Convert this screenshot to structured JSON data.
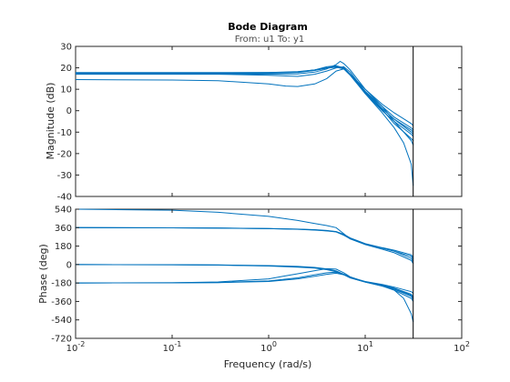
{
  "chart_data": {
    "type": "line",
    "title": "Bode Diagram",
    "subtitle": "From: u1  To: y1",
    "xlabel": "Frequency  (rad/s)",
    "x_scale": "log",
    "xlim": [
      0.01,
      100
    ],
    "x_ticks": [
      {
        "value": 0.01,
        "base": "10",
        "exp": "-2"
      },
      {
        "value": 0.1,
        "base": "10",
        "exp": "-1"
      },
      {
        "value": 1,
        "base": "10",
        "exp": "0"
      },
      {
        "value": 10,
        "base": "10",
        "exp": "1"
      },
      {
        "value": 100,
        "base": "10",
        "exp": "2"
      }
    ],
    "marker_frequency": 31.4,
    "line_color": "#0072bd",
    "panels": [
      {
        "name": "magnitude",
        "ylabel": "Magnitude (dB)",
        "ylim": [
          -40,
          30
        ],
        "y_ticks": [
          {
            "value": 30,
            "label": "30"
          },
          {
            "value": 20,
            "label": "20"
          },
          {
            "value": 10,
            "label": "10"
          },
          {
            "value": 0,
            "label": "0"
          },
          {
            "value": -10,
            "label": "-10"
          },
          {
            "value": -20,
            "label": "-20"
          },
          {
            "value": -30,
            "label": "-30"
          },
          {
            "value": -40,
            "label": "-40"
          }
        ],
        "series": [
          {
            "x": [
              0.01,
              0.1,
              0.3,
              1,
              2,
              3,
              4,
              5,
              6,
              7,
              10,
              15,
              20,
              30,
              31.4
            ],
            "y": [
              17.8,
              17.8,
              17.8,
              17.8,
              18.2,
              19,
              20,
              20.7,
              20,
              17,
              9,
              1,
              -4,
              -9,
              -10
            ]
          },
          {
            "x": [
              0.01,
              0.1,
              0.3,
              1,
              2,
              3,
              4,
              5,
              6,
              7,
              10,
              15,
              20,
              30,
              31.4
            ],
            "y": [
              17.5,
              17.5,
              17.5,
              17.6,
              18,
              19,
              20.5,
              21,
              20,
              17,
              8,
              0,
              -5,
              -11,
              -12
            ]
          },
          {
            "x": [
              0.01,
              0.1,
              0.3,
              1,
              2,
              3,
              4,
              5,
              6,
              7,
              10,
              15,
              20,
              30,
              31.4
            ],
            "y": [
              17,
              17,
              17,
              16.5,
              16,
              17,
              18.5,
              20,
              20.5,
              18,
              9,
              2,
              -3,
              -8,
              -9
            ]
          },
          {
            "x": [
              0.01,
              0.1,
              0.3,
              1,
              2,
              3,
              4,
              5,
              5.5,
              6,
              7,
              10,
              15,
              20,
              30,
              31.4
            ],
            "y": [
              17.3,
              17.3,
              17.2,
              17,
              17.2,
              18,
              19.5,
              21.5,
              23,
              22,
              19,
              10,
              2,
              -5,
              -14,
              -16
            ]
          },
          {
            "x": [
              0.01,
              0.1,
              0.3,
              1,
              1.5,
              2,
              3,
              4,
              5,
              6,
              7,
              10,
              15,
              20,
              30,
              31.4
            ],
            "y": [
              14.5,
              14.3,
              14,
              12.5,
              11.5,
              11.3,
              12.5,
              15,
              18.5,
              19.5,
              17,
              9,
              1,
              -4,
              -10,
              -11
            ]
          },
          {
            "x": [
              0.01,
              0.1,
              0.3,
              1,
              2,
              3,
              4,
              5,
              6,
              7,
              10,
              15,
              20,
              25,
              30,
              31.4
            ],
            "y": [
              17.6,
              17.6,
              17.6,
              17.7,
              18,
              19,
              20,
              20.5,
              19.5,
              16.5,
              8,
              -1,
              -8,
              -15,
              -25,
              -35
            ]
          },
          {
            "x": [
              0.01,
              0.1,
              0.3,
              1,
              2,
              3,
              4,
              5,
              6,
              7,
              10,
              15,
              20,
              30,
              31.4
            ],
            "y": [
              17.7,
              17.7,
              17.7,
              17.8,
              18,
              18.8,
              19.8,
              20.3,
              19.5,
              17,
              10,
              3,
              -1,
              -6,
              -7
            ]
          },
          {
            "x": [
              0.01,
              0.1,
              0.3,
              1,
              2,
              3,
              4,
              5,
              6,
              7,
              10,
              15,
              20,
              30,
              31.4
            ],
            "y": [
              17.4,
              17.4,
              17.4,
              17.5,
              17.8,
              18.8,
              20,
              20.8,
              19.8,
              16.8,
              8.5,
              0.5,
              -6,
              -13,
              -14
            ]
          }
        ]
      },
      {
        "name": "phase",
        "ylabel": "Phase (deg)",
        "ylim": [
          -720,
          540
        ],
        "y_ticks": [
          {
            "value": 540,
            "label": "540"
          },
          {
            "value": 360,
            "label": "360"
          },
          {
            "value": 180,
            "label": "180"
          },
          {
            "value": 0,
            "label": "0"
          },
          {
            "value": -180,
            "label": "-180"
          },
          {
            "value": -360,
            "label": "-360"
          },
          {
            "value": -540,
            "label": "-540"
          },
          {
            "value": -720,
            "label": "-720"
          }
        ],
        "series": [
          {
            "x": [
              0.01,
              0.1,
              0.3,
              1,
              2,
              3,
              4,
              5,
              6,
              7,
              10,
              15,
              20,
              30,
              31.4
            ],
            "y": [
              540,
              530,
              510,
              470,
              430,
              400,
              380,
              360,
              300,
              250,
              200,
              160,
              130,
              60,
              30
            ]
          },
          {
            "x": [
              0.01,
              0.1,
              0.3,
              1,
              2,
              3,
              4,
              5,
              6,
              7,
              10,
              15,
              20,
              30,
              31.4
            ],
            "y": [
              360,
              358,
              355,
              350,
              345,
              338,
              330,
              320,
              290,
              255,
              200,
              160,
              130,
              80,
              50
            ]
          },
          {
            "x": [
              0.01,
              0.1,
              0.3,
              1,
              2,
              3,
              4,
              5,
              6,
              7,
              10,
              15,
              20,
              30,
              31.4
            ],
            "y": [
              360,
              358,
              356,
              352,
              346,
              340,
              332,
              322,
              295,
              260,
              205,
              165,
              140,
              95,
              70
            ]
          },
          {
            "x": [
              0.01,
              0.1,
              0.3,
              1,
              2,
              3,
              4,
              5,
              6,
              7,
              10,
              15,
              20,
              30,
              31.4
            ],
            "y": [
              360,
              358,
              356,
              350,
              344,
              336,
              328,
              318,
              285,
              250,
              195,
              150,
              115,
              40,
              10
            ]
          },
          {
            "x": [
              0.01,
              0.1,
              0.3,
              1,
              2,
              3,
              4,
              5,
              6,
              7,
              10,
              15,
              20,
              30,
              31.4
            ],
            "y": [
              0,
              -2,
              -6,
              -15,
              -25,
              -35,
              -50,
              -70,
              -100,
              -130,
              -170,
              -200,
              -230,
              -290,
              -320
            ]
          },
          {
            "x": [
              0.01,
              0.1,
              0.3,
              1,
              2,
              3,
              4,
              5,
              6,
              7,
              10,
              15,
              20,
              30,
              31.4
            ],
            "y": [
              0,
              -1,
              -4,
              -10,
              -18,
              -28,
              -42,
              -62,
              -95,
              -125,
              -165,
              -195,
              -220,
              -265,
              -280
            ]
          },
          {
            "x": [
              0.01,
              0.1,
              0.3,
              1,
              2,
              3,
              4,
              5,
              6,
              7,
              10,
              15,
              20,
              25,
              30,
              31.4
            ],
            "y": [
              0,
              -2,
              -5,
              -12,
              -22,
              -32,
              -46,
              -66,
              -98,
              -128,
              -168,
              -205,
              -250,
              -330,
              -480,
              -560
            ]
          },
          {
            "x": [
              0.01,
              0.1,
              0.3,
              1,
              1.5,
              2,
              3,
              4,
              5,
              6,
              7,
              10,
              15,
              20,
              30,
              31.4
            ],
            "y": [
              -180,
              -178,
              -170,
              -140,
              -110,
              -90,
              -60,
              -40,
              -45,
              -80,
              -120,
              -170,
              -210,
              -250,
              -330,
              -360
            ]
          },
          {
            "x": [
              0.01,
              0.1,
              0.3,
              1,
              2,
              3,
              4,
              5,
              6,
              7,
              10,
              15,
              20,
              30,
              31.4
            ],
            "y": [
              -180,
              -178,
              -175,
              -160,
              -130,
              -100,
              -80,
              -75,
              -95,
              -125,
              -170,
              -205,
              -235,
              -300,
              -330
            ]
          },
          {
            "x": [
              0.01,
              0.1,
              0.3,
              1,
              2,
              3,
              4,
              5,
              6,
              7,
              10,
              15,
              20,
              30,
              31.4
            ],
            "y": [
              -180,
              -179,
              -176,
              -165,
              -140,
              -115,
              -95,
              -85,
              -100,
              -130,
              -172,
              -210,
              -240,
              -310,
              -340
            ]
          }
        ]
      }
    ]
  }
}
